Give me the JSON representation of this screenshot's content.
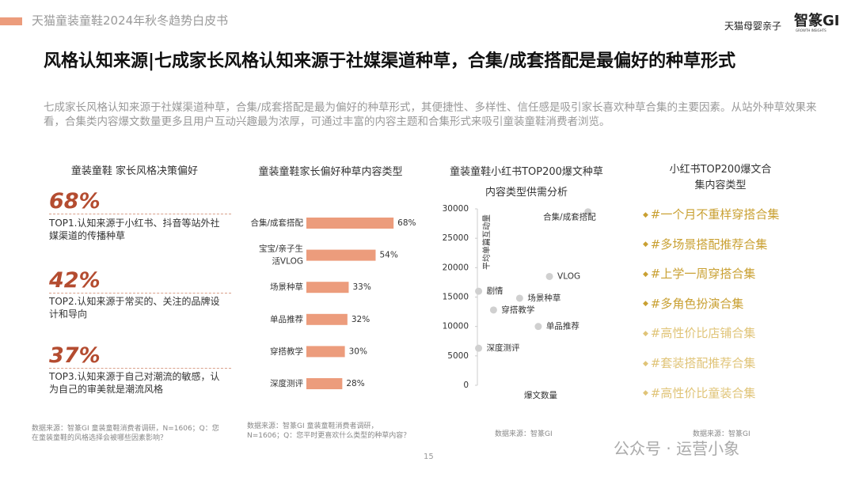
{
  "header": {
    "report": "天猫童装童鞋2024年秋冬趋势白皮书",
    "logo_left": "天猫母婴亲子",
    "logo_right": "智篆GI",
    "logo_right_sub": "GROWTH INSIGHTS"
  },
  "title": "风格认知来源|七成家长风格认知来源于社媒渠道种草，合集/成套搭配是最偏好的种草形式",
  "description": "七成家长风格认知来源于社媒渠道种草，合集/成套搭配是最为偏好的种草形式，其便捷性、多样性、信任感是吸引家长喜欢种草合集的主要因素。从站外种草效果来看，合集类内容爆文数量更多且用户互动兴趣最为浓厚，可通过丰富的内容主题和合集形式来吸引童装童鞋消费者浏览。",
  "preference_panel": {
    "title": "童装童鞋 家长风格决策偏好",
    "items": [
      {
        "share": "68%",
        "text": "TOP1.认知来源于小红书、抖音等站外社媒渠道的传播种草"
      },
      {
        "share": "42%",
        "text": "TOP2.认知来源于常买的、关注的品牌设计和导向"
      },
      {
        "share": "37%",
        "text": "TOP3.认知来源于自己对潮流的敏感，认为自己的审美就是潮流风格"
      }
    ],
    "source": "数据来源：智篆GI 童装童鞋消费者调研，N=1606；Q：您在童装童鞋的风格选择会被哪些因素影响？"
  },
  "chart_data": [
    {
      "type": "bar",
      "orientation": "horizontal",
      "title": "童装童鞋家长偏好种草内容类型",
      "categories": [
        "合集/成套搭配",
        "宝宝/亲子生活VLOG",
        "场景种草",
        "单品推荐",
        "穿搭教学",
        "深度测评"
      ],
      "values": [
        68,
        54,
        33,
        32,
        30,
        28
      ],
      "value_labels": [
        "68%",
        "54%",
        "33%",
        "32%",
        "30%",
        "28%"
      ],
      "color": "#ec9c7c",
      "source": "数据来源：智篆GI 童装童鞋消费者调研，N=1606；Q：您平时更喜欢什么类型的种草内容？"
    },
    {
      "type": "scatter",
      "title": "童装童鞋小红书TOP200爆文种草内容类型供需分析",
      "x_label": "爆文数量",
      "y_label": "平均单篇互动量",
      "point_labels": [
        "合集/成套搭配",
        "VLOG",
        "剧情",
        "场景种草",
        "穿搭教学",
        "单品推荐",
        "深度测评"
      ],
      "x": [
        89,
        58,
        1,
        34,
        13,
        49,
        1
      ],
      "values": [
        29500,
        18500,
        16000,
        14800,
        12800,
        10000,
        6300
      ],
      "xlim": [
        0,
        100
      ],
      "ylim": [
        0,
        30000
      ],
      "yticks": [
        0,
        5000,
        10000,
        15000,
        20000,
        25000,
        30000
      ],
      "color": "#d0d0d0",
      "source": "数据来源：智篆GI"
    }
  ],
  "collection_panel": {
    "title": "小红书TOP200爆文合集内容类型",
    "items": [
      "#一个月不重样穿搭合集",
      "#多场景搭配推荐合集",
      "#上学一周穿搭合集",
      "#多角色扮演合集",
      "#高性价比店铺合集",
      "#套装搭配推荐合集",
      "#高性价比童装合集"
    ],
    "source": "数据来源：智篆GI"
  },
  "page_number": "15",
  "watermark": "公众号 · 运营小象"
}
